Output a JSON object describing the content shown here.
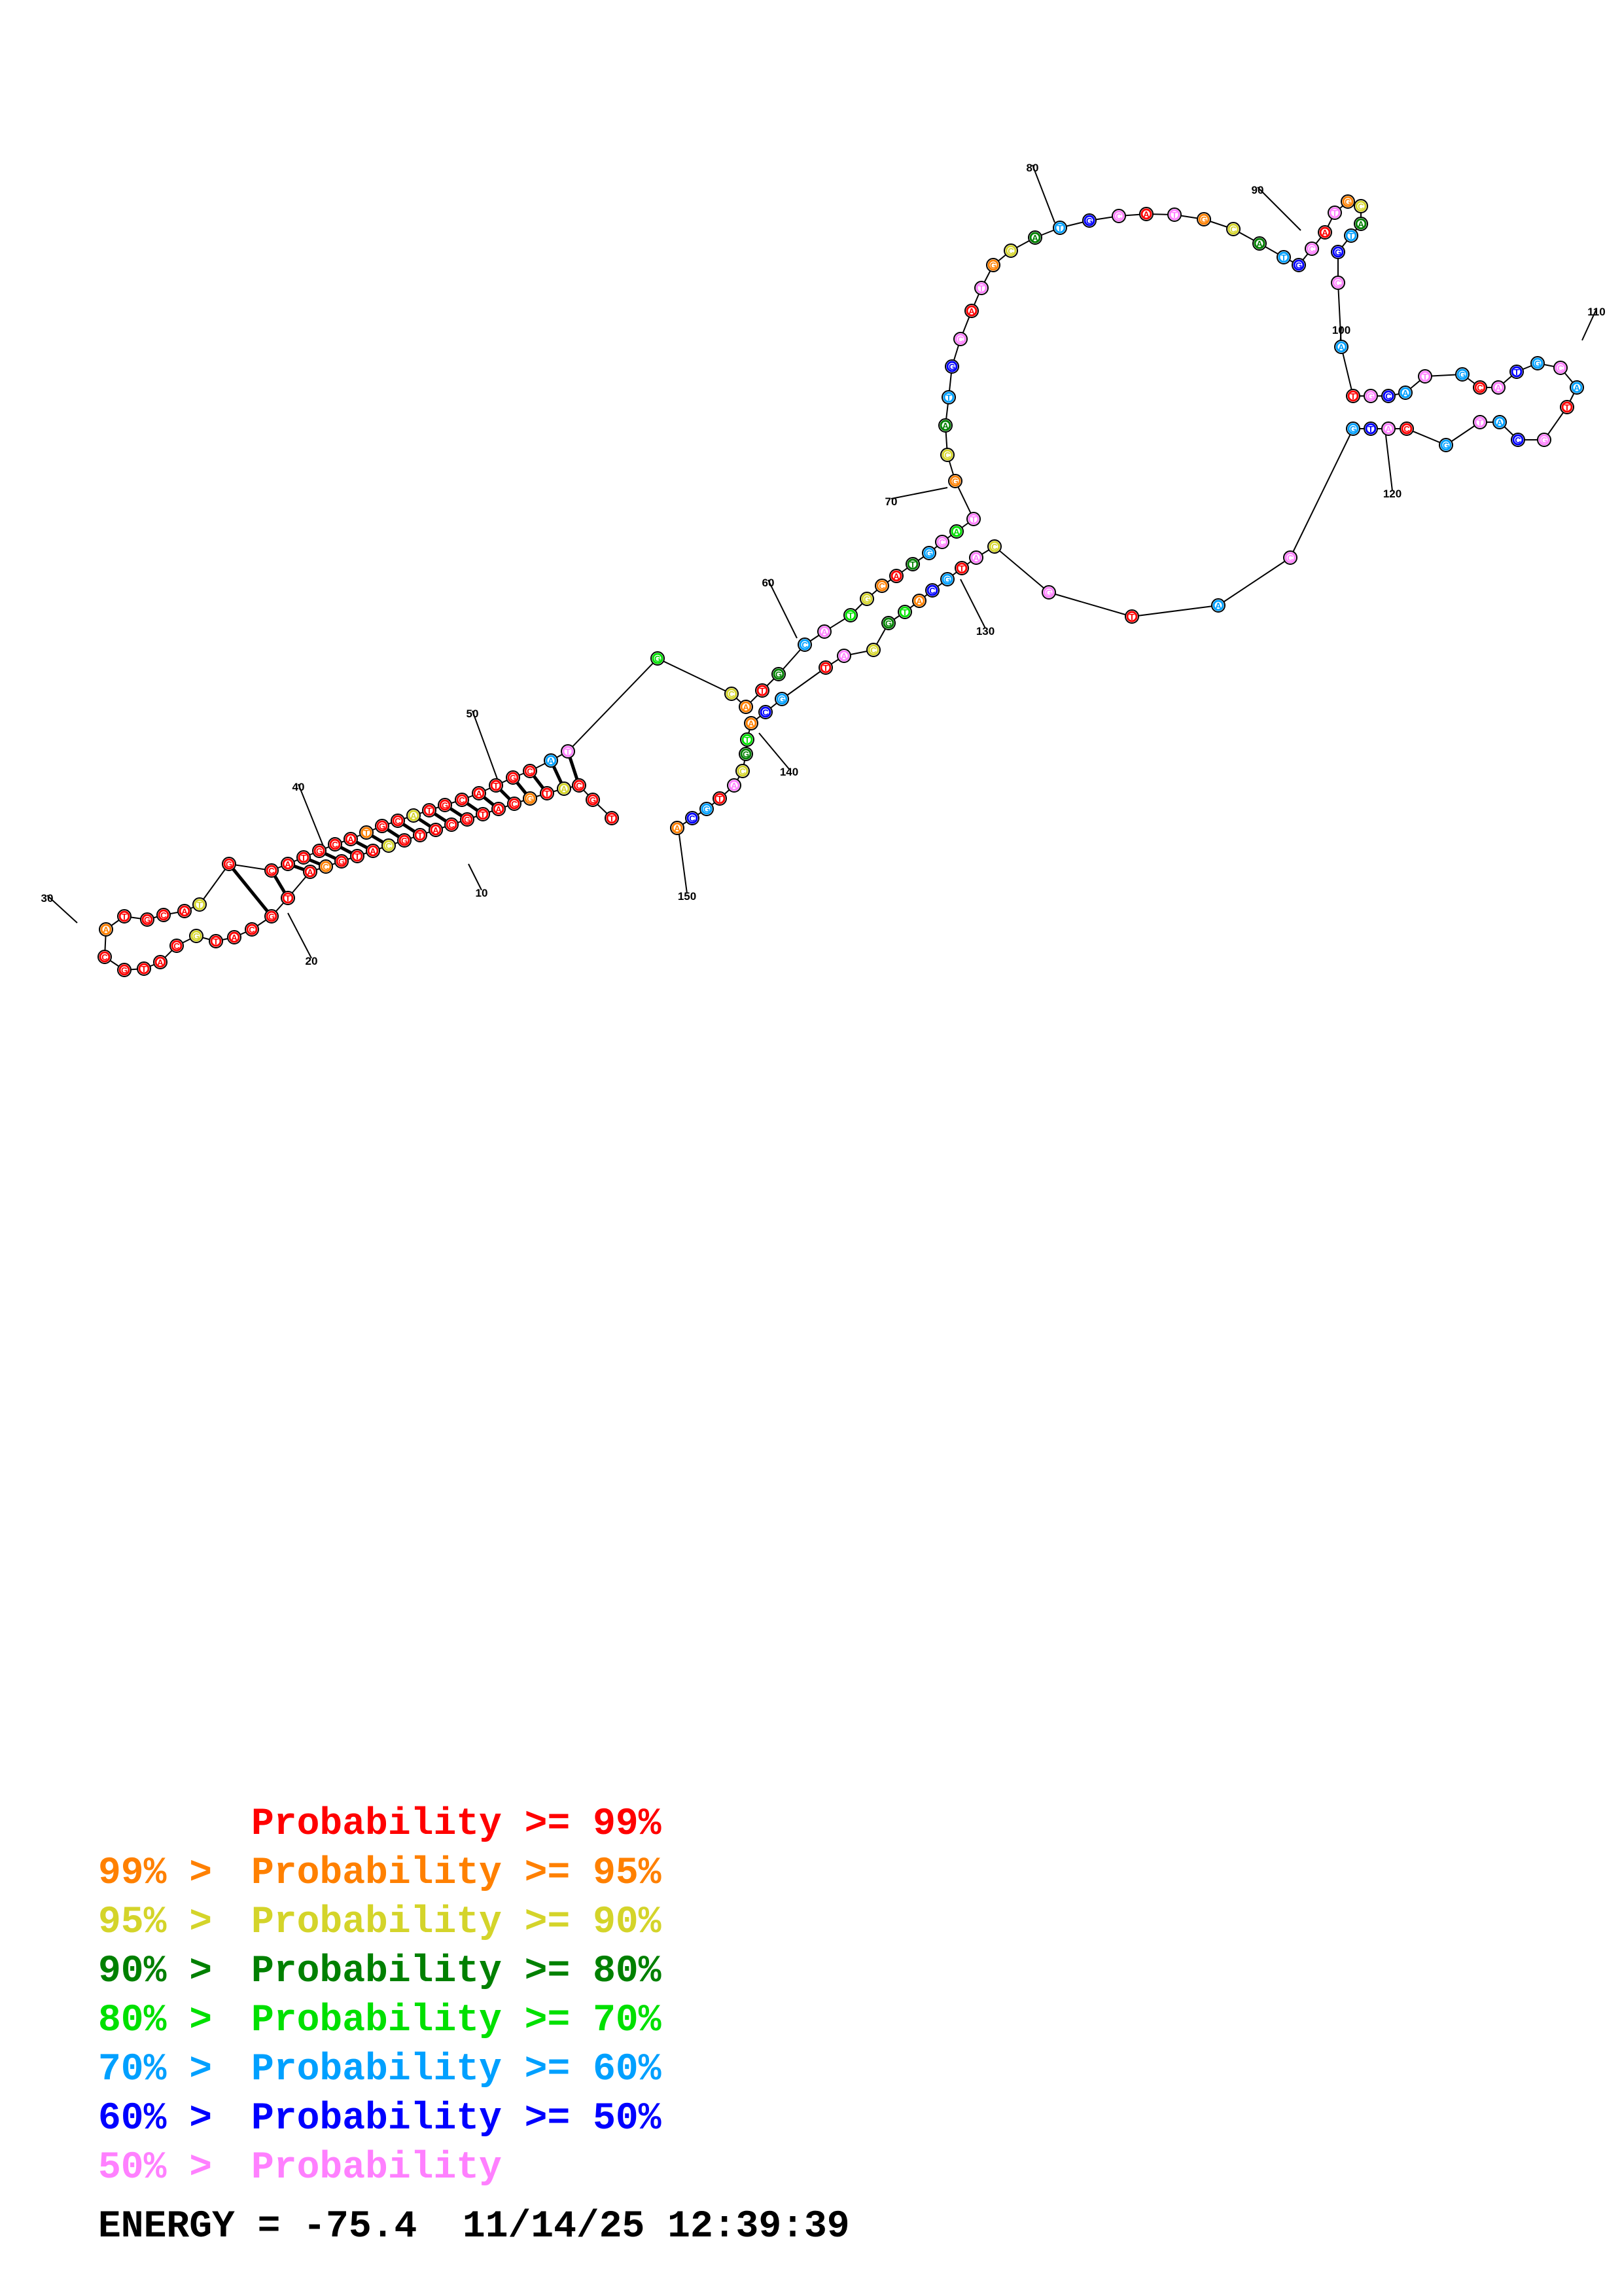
{
  "colors": {
    "p99": "#ff0000",
    "p95": "#ff8000",
    "p90": "#d4d42a",
    "p80": "#008000",
    "p70": "#00e000",
    "p60": "#00a0ff",
    "p50": "#0000ff",
    "plt50": "#ff80ff"
  },
  "legend": [
    {
      "prefix": "",
      "text": "Probability >= 99%",
      "color": "p99"
    },
    {
      "prefix": "99% > ",
      "text": "Probability >= 95%",
      "color": "p95"
    },
    {
      "prefix": "95% > ",
      "text": "Probability >= 90%",
      "color": "p90"
    },
    {
      "prefix": "90% > ",
      "text": "Probability >= 80%",
      "color": "p80"
    },
    {
      "prefix": "80% > ",
      "text": "Probability >= 70%",
      "color": "p70"
    },
    {
      "prefix": "70% > ",
      "text": "Probability >= 60%",
      "color": "p60"
    },
    {
      "prefix": "60% > ",
      "text": "Probability >= 50%",
      "color": "p50"
    },
    {
      "prefix": "50% > ",
      "text": "Probability",
      "color": "plt50"
    }
  ],
  "energy_line": "ENERGY = -75.4  11/14/25 12:39:39",
  "position_labels": [
    "10",
    "20",
    "30",
    "40",
    "50",
    "60",
    "70",
    "80",
    "90",
    "100",
    "110",
    "120",
    "130",
    "140",
    "150"
  ],
  "stem_nucleotides": [
    {
      "color": "p99",
      "letter": "G"
    },
    {
      "color": "p99",
      "letter": "A"
    },
    {
      "color": "p99",
      "letter": "C"
    },
    {
      "color": "p99",
      "letter": "T"
    },
    {
      "color": "p99",
      "letter": "C"
    },
    {
      "color": "p99",
      "letter": "G"
    },
    {
      "color": "p99",
      "letter": "A"
    },
    {
      "color": "p99",
      "letter": "G"
    },
    {
      "color": "p99",
      "letter": "T"
    },
    {
      "color": "p99",
      "letter": "C"
    },
    {
      "color": "p99",
      "letter": "G"
    },
    {
      "color": "p99",
      "letter": "A"
    },
    {
      "color": "p99",
      "letter": "C"
    },
    {
      "color": "p99",
      "letter": "G"
    },
    {
      "color": "p99",
      "letter": "T"
    },
    {
      "color": "p99",
      "letter": "C"
    }
  ]
}
